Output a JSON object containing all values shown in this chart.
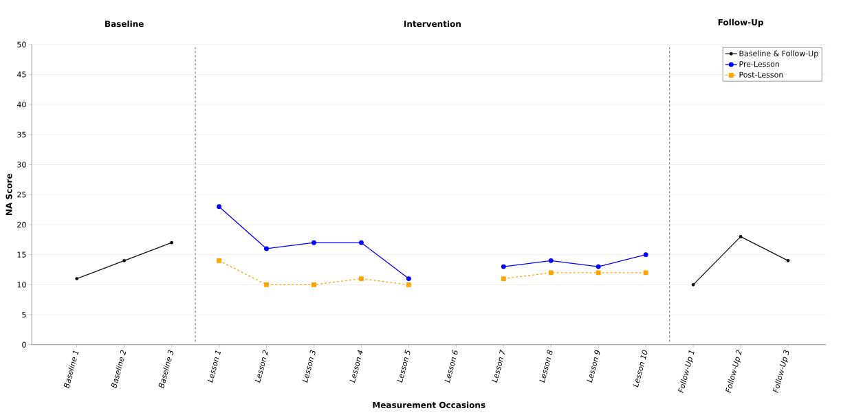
{
  "chart_data": {
    "type": "line",
    "xlabel": "Measurement Occasions",
    "ylabel": "NA Score",
    "categories": [
      "Baseline 1",
      "Baseline 2",
      "Baseline 3",
      "Lesson 1",
      "Lesson 2",
      "Lesson 3",
      "Lesson 4",
      "Lesson 5",
      "Lesson 6",
      "Lesson 7",
      "Lesson 8",
      "Lesson 9",
      "Lesson 10",
      "Follow-Up 1",
      "Follow-Up 2",
      "Follow-Up 3"
    ],
    "series": [
      {
        "name": "Baseline & Follow-Up",
        "color": "#111111",
        "marker": "circle",
        "line_style": "solid",
        "values": [
          11,
          14,
          17,
          null,
          null,
          null,
          null,
          null,
          null,
          null,
          null,
          null,
          null,
          10,
          18,
          14
        ]
      },
      {
        "name": "Pre-Lesson",
        "color": "#0000ff",
        "marker": "circle",
        "line_style": "solid",
        "values": [
          null,
          null,
          null,
          23,
          16,
          17,
          17,
          11,
          null,
          13,
          14,
          13,
          15,
          null,
          null,
          null
        ]
      },
      {
        "name": "Post-Lesson",
        "color": "#ffa500",
        "marker": "square",
        "line_style": "dashed",
        "values": [
          null,
          null,
          null,
          14,
          10,
          10,
          11,
          10,
          null,
          11,
          12,
          12,
          12,
          null,
          null,
          null
        ]
      }
    ],
    "ylim": [
      0,
      50
    ],
    "yticks": [
      0,
      5,
      10,
      15,
      20,
      25,
      30,
      35,
      40,
      45,
      50
    ],
    "grid": "y",
    "legend": "top right",
    "annotations": [
      "Baseline",
      "Intervention",
      "Follow-Up"
    ]
  }
}
